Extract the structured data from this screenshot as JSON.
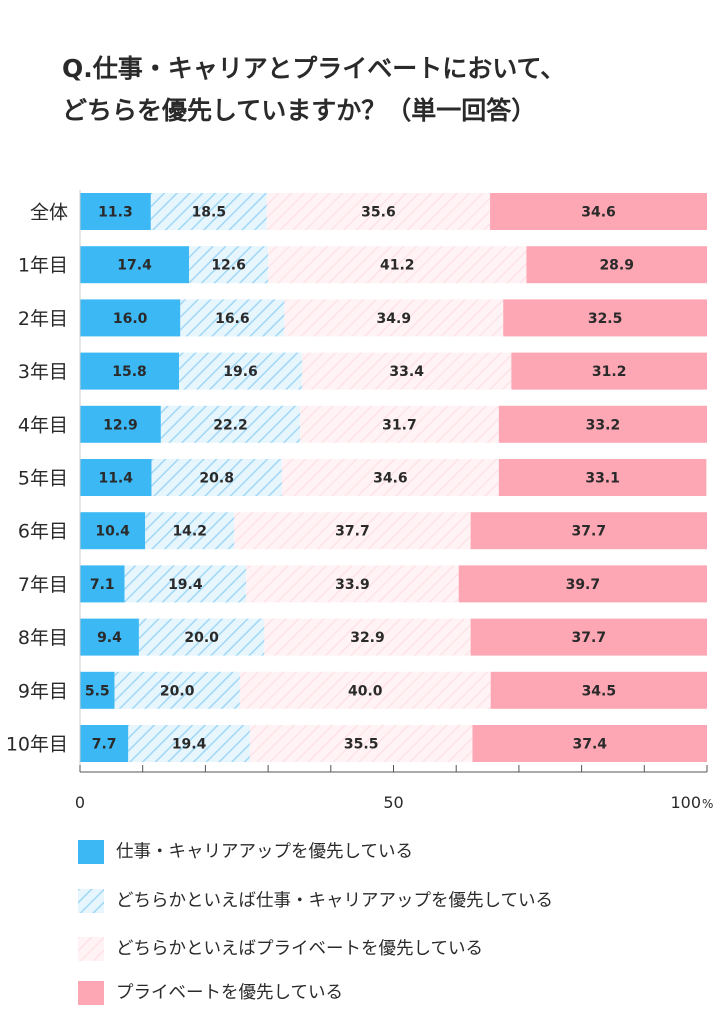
{
  "title_lines": [
    "Q.仕事・キャリアとプライベートにおいて、",
    "どちらを優先していますか？（単一回答）"
  ],
  "colors": {
    "work": "#3cb8f5",
    "lean_work": "#bfe6fb",
    "lean_private": "#fde3e7",
    "private": "#fda7b4",
    "axis": "#555555",
    "value_text": "#2a2a2a"
  },
  "legend": [
    {
      "label": "仕事・キャリアアップを優先している",
      "style": "solid-blue"
    },
    {
      "label": "どちらかといえば仕事・キャリアアップを優先している",
      "style": "hatch-blue"
    },
    {
      "label": "どちらかといえばプライベートを優先している",
      "style": "hatch-pink"
    },
    {
      "label": "プライベートを優先している",
      "style": "solid-pink"
    }
  ],
  "chart_data": {
    "type": "bar",
    "orientation": "horizontal",
    "stacked": true,
    "categories": [
      "全体",
      "1年目",
      "2年目",
      "3年目",
      "4年目",
      "5年目",
      "6年目",
      "7年目",
      "8年目",
      "9年目",
      "10年目"
    ],
    "series": [
      {
        "name": "仕事・キャリアアップを優先している",
        "values": [
          11.3,
          17.4,
          16.0,
          15.8,
          12.9,
          11.4,
          10.4,
          7.1,
          9.4,
          5.5,
          7.7
        ]
      },
      {
        "name": "どちらかといえば仕事・キャリアアップを優先している",
        "values": [
          18.5,
          12.6,
          16.6,
          19.6,
          22.2,
          20.8,
          14.2,
          19.4,
          20.0,
          20.0,
          19.4
        ]
      },
      {
        "name": "どちらかといえばプライベートを優先している",
        "values": [
          35.6,
          41.2,
          34.9,
          33.4,
          31.7,
          34.6,
          37.7,
          33.9,
          32.9,
          40.0,
          35.5
        ]
      },
      {
        "name": "プライベートを優先している",
        "values": [
          34.6,
          28.9,
          32.5,
          31.2,
          33.2,
          33.1,
          37.7,
          39.7,
          37.7,
          34.5,
          37.4
        ]
      }
    ],
    "data_labels": [
      [
        "11.3",
        "18.5",
        "35.6",
        "34.6"
      ],
      [
        "17.4",
        "12.6",
        "41.2",
        "28.9"
      ],
      [
        "16.0",
        "16.6",
        "34.9",
        "32.5"
      ],
      [
        "15.8",
        "19.6",
        "33.4",
        "31.2"
      ],
      [
        "12.9",
        "22.2",
        "31.7",
        "33.2"
      ],
      [
        "11.4",
        "20.8",
        "34.6",
        "33.1"
      ],
      [
        "10.4",
        "14.2",
        "37.7",
        "37.7"
      ],
      [
        "7.1",
        "19.4",
        "33.9",
        "39.7"
      ],
      [
        "9.4",
        "20.0",
        "32.9",
        "37.7"
      ],
      [
        "5.5",
        "20.0",
        "40.0",
        "34.5"
      ],
      [
        "7.7",
        "19.4",
        "35.5",
        "37.4"
      ]
    ],
    "xlim": [
      0,
      100
    ],
    "x_tick_labels": [
      "0",
      "50",
      "100"
    ],
    "x_tick_unit": "%",
    "grid": false
  }
}
